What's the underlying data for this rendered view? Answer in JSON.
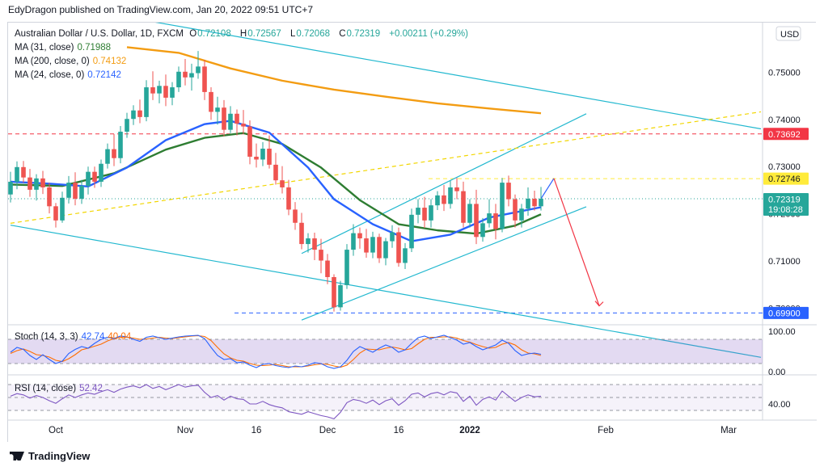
{
  "header": {
    "text": "EdyDragon published on TradingView.com, Jan 20, 2022 09:51 UTC+7"
  },
  "footer": {
    "brand": "TradingView"
  },
  "legend": {
    "symbol": "Australian Dollar / U.S. Dollar, 1D, FXCM",
    "ohlc": {
      "o_label": "O",
      "o": "0.72108",
      "h_label": "H",
      "h": "0.72567",
      "l_label": "L",
      "l": "0.72068",
      "c_label": "C",
      "c": "0.72319",
      "change": "+0.00211 (+0.29%)"
    },
    "ma31": {
      "label": "MA (31, close)",
      "value": "0.71988",
      "color": "#2e7d32"
    },
    "ma200": {
      "label": "MA (200, close, 0)",
      "value": "0.74132",
      "color": "#f39c12"
    },
    "ma24": {
      "label": "MA (24, close, 0)",
      "value": "0.72142",
      "color": "#2962ff"
    },
    "stoch": {
      "label": "Stoch (14, 3, 3)",
      "k": "42.74",
      "d": "40.04"
    },
    "rsi": {
      "label": "RSI (14, close)",
      "value": "52.42"
    }
  },
  "chart_data": {
    "type": "candlestick",
    "currency": "USD",
    "y_ticks": [
      "0.75000",
      "0.74000",
      "0.73000",
      "0.72000",
      "0.71000",
      "0.70000"
    ],
    "ylim": [
      0.6965,
      0.7605
    ],
    "x_ticks": [
      "Oct",
      "Nov",
      "16",
      "Dec",
      "16",
      "2022",
      "Feb",
      "Mar"
    ],
    "price_labels": [
      {
        "value": 0.73692,
        "text": "0.73692",
        "color": "#f23645",
        "text_color": "#ffffff"
      },
      {
        "value": 0.72746,
        "text": "0.72746",
        "color": "#ffeb3b",
        "text_color": "#131722"
      },
      {
        "value": 0.72319,
        "text": "0.72319",
        "sub": "19:08:28",
        "color": "#26a69a",
        "text_color": "#ffffff"
      },
      {
        "value": 0.699,
        "text": "0.69900",
        "color": "#2962ff",
        "text_color": "#ffffff"
      }
    ],
    "horizontal_levels": [
      {
        "value": 0.73692,
        "color": "#f23645",
        "style": "dashed"
      },
      {
        "value": 0.72746,
        "color": "#ffeb3b",
        "style": "dashed"
      },
      {
        "value": 0.699,
        "color": "#2962ff",
        "style": "dashed"
      },
      {
        "value": 0.72319,
        "color": "#26a69a",
        "style": "dotted"
      }
    ],
    "candles": [
      [
        0.7241,
        0.7289,
        0.7224,
        0.7268
      ],
      [
        0.7268,
        0.7311,
        0.7252,
        0.7299
      ],
      [
        0.7299,
        0.7312,
        0.7266,
        0.7277
      ],
      [
        0.7277,
        0.7295,
        0.7236,
        0.7251
      ],
      [
        0.7251,
        0.7284,
        0.7228,
        0.7275
      ],
      [
        0.7275,
        0.7291,
        0.7242,
        0.7256
      ],
      [
        0.7256,
        0.7266,
        0.7201,
        0.7216
      ],
      [
        0.7216,
        0.7223,
        0.7171,
        0.7186
      ],
      [
        0.7186,
        0.7247,
        0.7181,
        0.7234
      ],
      [
        0.7234,
        0.728,
        0.7222,
        0.7266
      ],
      [
        0.7266,
        0.7288,
        0.7218,
        0.7232
      ],
      [
        0.7232,
        0.7272,
        0.7221,
        0.7259
      ],
      [
        0.7259,
        0.73,
        0.7241,
        0.7289
      ],
      [
        0.7289,
        0.73,
        0.7255,
        0.7268
      ],
      [
        0.7268,
        0.7315,
        0.7257,
        0.7306
      ],
      [
        0.7306,
        0.7349,
        0.7296,
        0.7337
      ],
      [
        0.7337,
        0.7369,
        0.7301,
        0.7318
      ],
      [
        0.7318,
        0.7386,
        0.7307,
        0.7374
      ],
      [
        0.7374,
        0.7414,
        0.7361,
        0.7401
      ],
      [
        0.7401,
        0.743,
        0.7388,
        0.7419
      ],
      [
        0.7419,
        0.7442,
        0.7392,
        0.7405
      ],
      [
        0.7405,
        0.7483,
        0.7396,
        0.7468
      ],
      [
        0.7468,
        0.7502,
        0.7441,
        0.7455
      ],
      [
        0.7455,
        0.7482,
        0.7434,
        0.7471
      ],
      [
        0.7471,
        0.7495,
        0.7428,
        0.7446
      ],
      [
        0.7446,
        0.7479,
        0.743,
        0.7468
      ],
      [
        0.7468,
        0.7512,
        0.7458,
        0.7501
      ],
      [
        0.7501,
        0.7528,
        0.7472,
        0.7489
      ],
      [
        0.7489,
        0.7518,
        0.7461,
        0.7498
      ],
      [
        0.7498,
        0.7545,
        0.7486,
        0.7512
      ],
      [
        0.7512,
        0.7526,
        0.7441,
        0.7458
      ],
      [
        0.7458,
        0.7468,
        0.7399,
        0.7416
      ],
      [
        0.7416,
        0.7448,
        0.7389,
        0.7425
      ],
      [
        0.7425,
        0.7441,
        0.7364,
        0.7378
      ],
      [
        0.7378,
        0.7428,
        0.7371,
        0.7412
      ],
      [
        0.7412,
        0.7421,
        0.7366,
        0.7391
      ],
      [
        0.7391,
        0.742,
        0.7369,
        0.7385
      ],
      [
        0.7385,
        0.7398,
        0.7305,
        0.7321
      ],
      [
        0.7321,
        0.7349,
        0.7298,
        0.7315
      ],
      [
        0.7315,
        0.7352,
        0.7301,
        0.7338
      ],
      [
        0.7338,
        0.7366,
        0.7296,
        0.7304
      ],
      [
        0.7304,
        0.7329,
        0.7262,
        0.7271
      ],
      [
        0.7271,
        0.7301,
        0.7243,
        0.7256
      ],
      [
        0.7256,
        0.7272,
        0.7197,
        0.7209
      ],
      [
        0.7209,
        0.7225,
        0.7166,
        0.7181
      ],
      [
        0.7181,
        0.7202,
        0.7125,
        0.7136
      ],
      [
        0.7136,
        0.7159,
        0.7118,
        0.7148
      ],
      [
        0.7148,
        0.716,
        0.7102,
        0.7124
      ],
      [
        0.7124,
        0.7147,
        0.7074,
        0.7101
      ],
      [
        0.7101,
        0.7115,
        0.7051,
        0.7066
      ],
      [
        0.7066,
        0.7072,
        0.6993,
        0.7002
      ],
      [
        0.7002,
        0.7058,
        0.6995,
        0.7049
      ],
      [
        0.7049,
        0.7136,
        0.7041,
        0.7124
      ],
      [
        0.7124,
        0.7178,
        0.7111,
        0.7159
      ],
      [
        0.7159,
        0.7171,
        0.7126,
        0.7148
      ],
      [
        0.7148,
        0.7168,
        0.7107,
        0.7118
      ],
      [
        0.7118,
        0.7162,
        0.7106,
        0.7151
      ],
      [
        0.7151,
        0.7158,
        0.7096,
        0.7106
      ],
      [
        0.7106,
        0.7149,
        0.7091,
        0.7142
      ],
      [
        0.7142,
        0.7176,
        0.7128,
        0.7161
      ],
      [
        0.7161,
        0.7171,
        0.7088,
        0.7096
      ],
      [
        0.7096,
        0.7138,
        0.7083,
        0.7127
      ],
      [
        0.7127,
        0.7211,
        0.7119,
        0.7198
      ],
      [
        0.7198,
        0.7231,
        0.718,
        0.7213
      ],
      [
        0.7213,
        0.7236,
        0.717,
        0.7186
      ],
      [
        0.7186,
        0.7231,
        0.7171,
        0.7218
      ],
      [
        0.7218,
        0.7248,
        0.7208,
        0.7239
      ],
      [
        0.7239,
        0.7261,
        0.7206,
        0.7221
      ],
      [
        0.7221,
        0.727,
        0.7211,
        0.7256
      ],
      [
        0.7256,
        0.7276,
        0.7231,
        0.7248
      ],
      [
        0.7248,
        0.7268,
        0.7171,
        0.7181
      ],
      [
        0.7181,
        0.7231,
        0.7171,
        0.7221
      ],
      [
        0.7221,
        0.7251,
        0.7136,
        0.7151
      ],
      [
        0.7151,
        0.7191,
        0.7141,
        0.718
      ],
      [
        0.718,
        0.7231,
        0.7171,
        0.7201
      ],
      [
        0.7201,
        0.7221,
        0.7146,
        0.7168
      ],
      [
        0.7168,
        0.7276,
        0.7161,
        0.7266
      ],
      [
        0.7266,
        0.7281,
        0.7216,
        0.7231
      ],
      [
        0.7231,
        0.7241,
        0.7171,
        0.7186
      ],
      [
        0.7186,
        0.7221,
        0.7171,
        0.7211
      ],
      [
        0.7211,
        0.7256,
        0.7196,
        0.7232
      ],
      [
        0.7232,
        0.7249,
        0.7207,
        0.7216
      ],
      [
        0.7216,
        0.7257,
        0.7207,
        0.7232
      ]
    ],
    "moving_averages": [
      {
        "name": "MA (31, close)",
        "color": "#2e7d32",
        "points": [
          [
            0,
            0.7262
          ],
          [
            8,
            0.7259
          ],
          [
            16,
            0.7286
          ],
          [
            24,
            0.7336
          ],
          [
            30,
            0.7361
          ],
          [
            36,
            0.7371
          ],
          [
            42,
            0.7348
          ],
          [
            48,
            0.7298
          ],
          [
            54,
            0.7229
          ],
          [
            60,
            0.7178
          ],
          [
            66,
            0.7165
          ],
          [
            72,
            0.7158
          ],
          [
            78,
            0.7175
          ],
          [
            82,
            0.7199
          ]
        ]
      },
      {
        "name": "MA (200, close, 0)",
        "color": "#f39c12",
        "points": [
          [
            18,
            0.7553
          ],
          [
            26,
            0.7541
          ],
          [
            34,
            0.7508
          ],
          [
            42,
            0.7482
          ],
          [
            50,
            0.7463
          ],
          [
            58,
            0.7448
          ],
          [
            66,
            0.7434
          ],
          [
            74,
            0.7423
          ],
          [
            82,
            0.7413
          ]
        ]
      },
      {
        "name": "MA (24, close, 0)",
        "color": "#2962ff",
        "points": [
          [
            0,
            0.7268
          ],
          [
            6,
            0.7264
          ],
          [
            12,
            0.7258
          ],
          [
            18,
            0.7298
          ],
          [
            24,
            0.7356
          ],
          [
            30,
            0.739
          ],
          [
            34,
            0.7397
          ],
          [
            40,
            0.7372
          ],
          [
            46,
            0.7298
          ],
          [
            50,
            0.7231
          ],
          [
            56,
            0.7178
          ],
          [
            62,
            0.7142
          ],
          [
            68,
            0.7156
          ],
          [
            74,
            0.7192
          ],
          [
            78,
            0.7203
          ],
          [
            82,
            0.7214
          ]
        ]
      }
    ],
    "stoch": {
      "range": [
        0,
        100
      ],
      "ticks": [
        "100.00",
        "0.00"
      ],
      "band": [
        20,
        80
      ],
      "k": [
        48,
        60,
        55,
        40,
        30,
        42,
        30,
        20,
        26,
        45,
        55,
        62,
        58,
        70,
        80,
        85,
        82,
        88,
        86,
        80,
        75,
        85,
        88,
        84,
        80,
        83,
        86,
        88,
        89,
        90,
        82,
        60,
        40,
        30,
        32,
        22,
        24,
        16,
        10,
        18,
        20,
        15,
        12,
        10,
        14,
        12,
        16,
        22,
        20,
        12,
        8,
        12,
        28,
        50,
        62,
        55,
        48,
        58,
        66,
        60,
        48,
        54,
        70,
        84,
        88,
        82,
        86,
        90,
        84,
        78,
        68,
        72,
        62,
        54,
        60,
        66,
        78,
        70,
        52,
        40,
        44,
        46,
        43
      ],
      "d": [
        45,
        52,
        56,
        50,
        42,
        40,
        36,
        28,
        25,
        32,
        42,
        54,
        58,
        63,
        68,
        76,
        82,
        85,
        85,
        83,
        80,
        81,
        83,
        85,
        83,
        82,
        84,
        86,
        88,
        89,
        87,
        77,
        60,
        44,
        34,
        28,
        26,
        20,
        16,
        15,
        16,
        18,
        15,
        12,
        12,
        12,
        14,
        17,
        19,
        18,
        14,
        11,
        16,
        30,
        46,
        56,
        55,
        54,
        58,
        61,
        58,
        54,
        57,
        69,
        80,
        85,
        85,
        86,
        86,
        83,
        77,
        73,
        67,
        62,
        58,
        60,
        68,
        72,
        66,
        54,
        46,
        44,
        40
      ]
    },
    "rsi": {
      "range": [
        15,
        85
      ],
      "ticks": [
        "40.00"
      ],
      "band": [
        30,
        70
      ],
      "mid": 50,
      "values": [
        52,
        56,
        54,
        49,
        53,
        50,
        45,
        41,
        48,
        54,
        50,
        54,
        57,
        55,
        59,
        62,
        58,
        63,
        66,
        68,
        65,
        70,
        64,
        67,
        62,
        66,
        70,
        66,
        68,
        69,
        58,
        50,
        53,
        46,
        52,
        48,
        47,
        40,
        40,
        44,
        39,
        36,
        34,
        28,
        26,
        24,
        28,
        25,
        22,
        20,
        17,
        27,
        42,
        47,
        45,
        41,
        46,
        39,
        45,
        48,
        38,
        45,
        55,
        57,
        51,
        56,
        58,
        54,
        59,
        57,
        44,
        52,
        38,
        47,
        51,
        46,
        60,
        52,
        44,
        50,
        54,
        51,
        52
      ]
    },
    "overlay_lines": [
      {
        "kind": "downtrend-channel",
        "color": "#22b8cf",
        "points": [
          [
            0,
            0.766
          ],
          [
            116,
            0.738
          ]
        ]
      },
      {
        "kind": "downtrend-channel",
        "color": "#22b8cf",
        "points": [
          [
            0,
            0.7176
          ],
          [
            116,
            0.6896
          ]
        ]
      },
      {
        "kind": "uptrend-channel",
        "color": "#22b8cf",
        "points": [
          [
            45,
            0.6975
          ],
          [
            89,
            0.7215
          ]
        ]
      },
      {
        "kind": "uptrend-channel",
        "color": "#22b8cf",
        "points": [
          [
            45,
            0.7116
          ],
          [
            89,
            0.7412
          ]
        ]
      },
      {
        "kind": "support-trendline",
        "color": "#f2d600",
        "style": "dashed",
        "points": [
          [
            0,
            0.718
          ],
          [
            116,
            0.7416
          ]
        ]
      },
      {
        "kind": "projection-up",
        "color": "#2962ff",
        "points": [
          [
            82,
            0.7232
          ],
          [
            84,
            0.7275
          ]
        ]
      },
      {
        "kind": "projection-down",
        "color": "#f23645",
        "points": [
          [
            84,
            0.7275
          ],
          [
            91,
            0.7005
          ]
        ]
      }
    ]
  }
}
